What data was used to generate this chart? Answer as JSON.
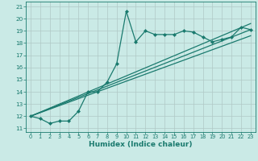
{
  "xlabel": "Humidex (Indice chaleur)",
  "background_color": "#caeae6",
  "grid_color": "#b0c8c5",
  "line_color": "#1a7a6e",
  "xlim": [
    -0.5,
    23.5
  ],
  "ylim": [
    10.7,
    21.4
  ],
  "xticks": [
    0,
    1,
    2,
    3,
    4,
    5,
    6,
    7,
    8,
    9,
    10,
    11,
    12,
    13,
    14,
    15,
    16,
    17,
    18,
    19,
    20,
    21,
    22,
    23
  ],
  "yticks": [
    11,
    12,
    13,
    14,
    15,
    16,
    17,
    18,
    19,
    20,
    21
  ],
  "line1_x": [
    0,
    1,
    2,
    3,
    4,
    5,
    6,
    7,
    8,
    9,
    10,
    11,
    12,
    13,
    14,
    15,
    16,
    17,
    18,
    19,
    20,
    21,
    22,
    23
  ],
  "line1_y": [
    12.0,
    11.8,
    11.4,
    11.6,
    11.6,
    12.4,
    14.0,
    14.0,
    14.8,
    16.3,
    20.6,
    18.1,
    19.0,
    18.7,
    18.7,
    18.7,
    19.0,
    18.9,
    18.5,
    18.1,
    18.3,
    18.5,
    19.3,
    19.1
  ],
  "line2_x": [
    0,
    23
  ],
  "line2_y": [
    12.0,
    19.6
  ],
  "line3_x": [
    0,
    23
  ],
  "line3_y": [
    12.0,
    19.1
  ],
  "line4_x": [
    0,
    23
  ],
  "line4_y": [
    12.0,
    18.6
  ]
}
